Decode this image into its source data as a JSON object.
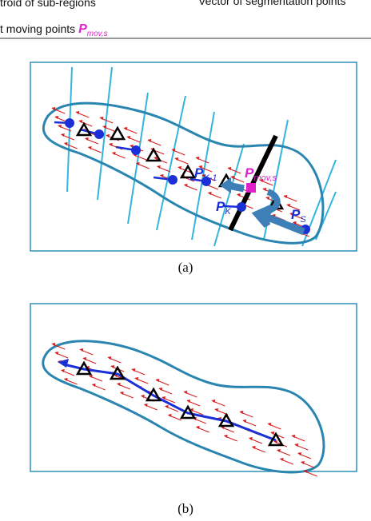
{
  "legend": {
    "centroid": "troid of sub-regions",
    "vector": "Vector of segmentation points",
    "moving": "t moving points ",
    "moving_symbol": "P",
    "moving_sub": "mov,s"
  },
  "panels": [
    {
      "caption": "(a)",
      "labels": [
        {
          "symbol": "P",
          "sub": "K-1"
        },
        {
          "symbol": "P",
          "sub": "mov,s"
        },
        {
          "symbol": "P",
          "sub": "K"
        },
        {
          "symbol": "P",
          "sub": "S"
        }
      ]
    },
    {
      "caption": "(b)"
    }
  ]
}
